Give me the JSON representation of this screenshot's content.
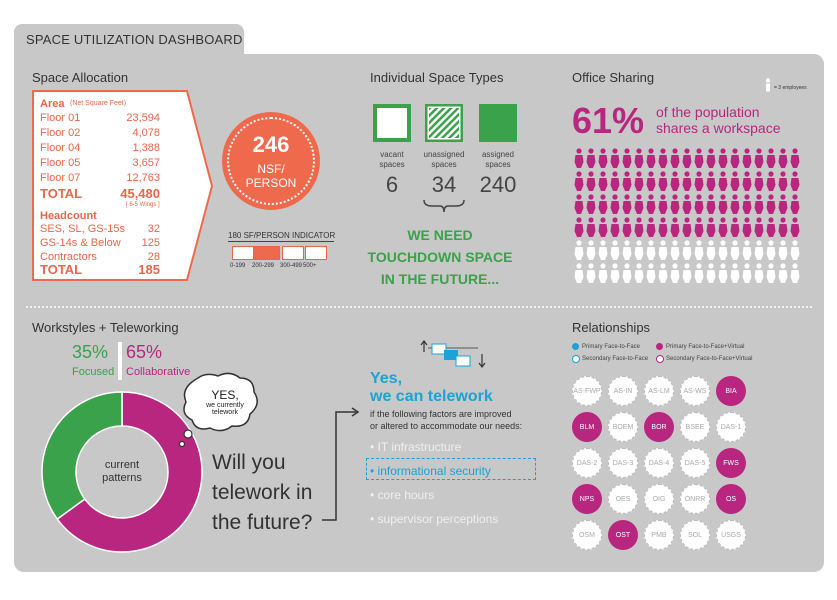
{
  "dashboard_title": "SPACE UTILIZATION DASHBOARD",
  "space_allocation": {
    "title": "Space Allocation",
    "area_header": "Area",
    "area_sub": "(Net Square Feet)",
    "floors": [
      {
        "label": "Floor 01",
        "value": "23,594"
      },
      {
        "label": "Floor 02",
        "value": "4,078"
      },
      {
        "label": "Floor 04",
        "value": "1,388"
      },
      {
        "label": "Floor 05",
        "value": "3,657"
      },
      {
        "label": "Floor 07",
        "value": "12,763"
      }
    ],
    "total_label": "TOTAL",
    "total_value": "45,480",
    "total_note": "[ 6-5 Wings ]",
    "headcount_header": "Headcount",
    "headcount": [
      {
        "label": "SES, SL, GS-15s",
        "value": "32"
      },
      {
        "label": "GS-14s & Below",
        "value": "125"
      },
      {
        "label": "Contractors",
        "value": "28"
      }
    ],
    "headcount_total_label": "TOTAL",
    "headcount_total_value": "185",
    "nsf_value": "246",
    "nsf_unit_1": "NSF/",
    "nsf_unit_2": "PERSON",
    "indicator_title": "180 SF/PERSON INDICATOR",
    "indicator_ranges": [
      "0-199",
      "200-299",
      "300-499",
      "500+"
    ],
    "indicator_active_index": 1
  },
  "space_types": {
    "title": "Individual Space Types",
    "types": [
      {
        "label_1": "vacant",
        "label_2": "spaces",
        "count": "6"
      },
      {
        "label_1": "unassigned",
        "label_2": "spaces",
        "count": "34"
      },
      {
        "label_1": "assigned",
        "label_2": "spaces",
        "count": "240"
      }
    ],
    "message_1": "WE NEED",
    "message_2": "TOUCHDOWN SPACE",
    "message_3": "IN THE FUTURE...",
    "green": "#3aa24a"
  },
  "office_sharing": {
    "title": "Office Sharing",
    "legend": "= 3 employees",
    "percent": "61%",
    "text_1": "of the population",
    "text_2": "shares a workspace",
    "icon_rows": 6,
    "icons_per_row": 19,
    "shared_rows": 4,
    "magenta": "#b8267f"
  },
  "workstyles": {
    "title": "Workstyles + Teleworking",
    "focused_pct": "35%",
    "focused_label": "Focused",
    "collab_pct": "65%",
    "collab_label": "Collaborative",
    "focused_fraction": 0.35,
    "center_1": "current",
    "center_2": "patterns",
    "bubble_1": "YES,",
    "bubble_2": "we currently",
    "bubble_3": "telework",
    "question_1": "Will you",
    "question_2": "telework in",
    "question_3": "the future?"
  },
  "telework": {
    "title_1": "Yes,",
    "title_2": "we can telework",
    "desc_1": "if the following factors are improved",
    "desc_2": "or altered to accommodate our needs:",
    "factors": [
      "• IT infrastructure",
      "• informational security",
      "• core hours",
      "• supervisor perceptions"
    ],
    "active_factor_index": 1,
    "blue": "#1aa3d4"
  },
  "relationships": {
    "title": "Relationships",
    "legend": [
      "Primary Face-to-Face",
      "Primary Face-to-Face+Virtual",
      "Secondary Face-to-Face",
      "Secondary Face-to-Face+Virtual"
    ],
    "nodes": [
      {
        "label": "AS-FWP",
        "primary": false
      },
      {
        "label": "AS-IN",
        "primary": false
      },
      {
        "label": "AS-LM",
        "primary": false
      },
      {
        "label": "AS-WS",
        "primary": false
      },
      {
        "label": "BIA",
        "primary": true
      },
      {
        "label": "BLM",
        "primary": true
      },
      {
        "label": "BOEM",
        "primary": false
      },
      {
        "label": "BOR",
        "primary": true
      },
      {
        "label": "BSEE",
        "primary": false
      },
      {
        "label": "DAS-1",
        "primary": false
      },
      {
        "label": "DAS-2",
        "primary": false
      },
      {
        "label": "DAS-3",
        "primary": false
      },
      {
        "label": "DAS-4",
        "primary": false
      },
      {
        "label": "DAS-5",
        "primary": false
      },
      {
        "label": "FWS",
        "primary": true
      },
      {
        "label": "NPS",
        "primary": true
      },
      {
        "label": "OES",
        "primary": false
      },
      {
        "label": "OIG",
        "primary": false
      },
      {
        "label": "ONRR",
        "primary": false
      },
      {
        "label": "OS",
        "primary": true
      },
      {
        "label": "OSM",
        "primary": false
      },
      {
        "label": "OST",
        "primary": true
      },
      {
        "label": "PMB",
        "primary": false
      },
      {
        "label": "SOL",
        "primary": false
      },
      {
        "label": "USGS",
        "primary": false
      }
    ]
  }
}
